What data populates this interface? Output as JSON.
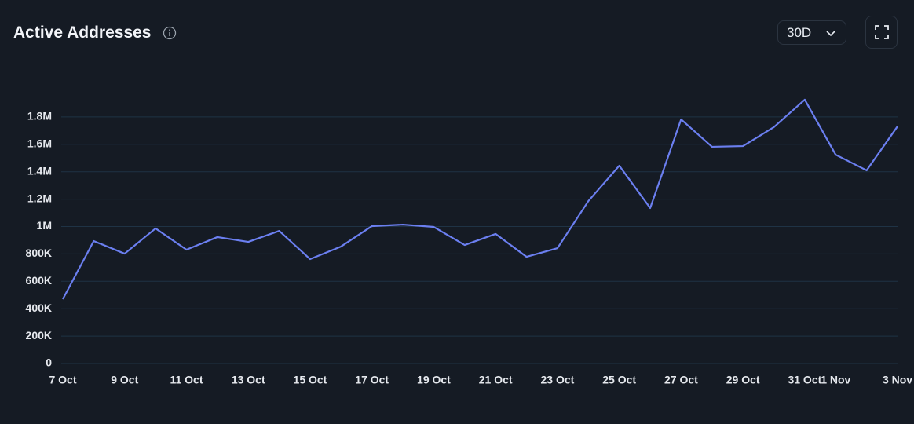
{
  "chart_data": {
    "type": "line",
    "title": "Active Addresses",
    "range_selector": "30D",
    "categories": [
      "7 Oct",
      null,
      "9 Oct",
      null,
      "11 Oct",
      null,
      "13 Oct",
      null,
      "15 Oct",
      null,
      "17 Oct",
      null,
      "19 Oct",
      null,
      "21 Oct",
      null,
      "23 Oct",
      null,
      "25 Oct",
      null,
      "27 Oct",
      null,
      "29 Oct",
      null,
      "31 Oct",
      "1 Nov",
      null,
      "3 Nov"
    ],
    "values": [
      470000,
      894000,
      802000,
      986000,
      831000,
      923000,
      888000,
      968000,
      762000,
      854000,
      1003000,
      1014000,
      997000,
      865000,
      946000,
      779000,
      842000,
      1186000,
      1444000,
      1135000,
      1782000,
      1582000,
      1587000,
      1725000,
      1926000,
      1524000,
      1410000,
      1731000
    ],
    "color": "#6b7ff0",
    "ylim": [
      0,
      2000000
    ],
    "yticks": [
      0,
      {
        "value": 200000,
        "label": "200K"
      },
      {
        "value": 400000,
        "label": "400K"
      },
      {
        "value": 600000,
        "label": "600K"
      },
      {
        "value": 800000,
        "label": "800K"
      },
      {
        "value": 1000000,
        "label": "1M"
      },
      {
        "value": 1200000,
        "label": "1.2M"
      },
      {
        "value": 1400000,
        "label": "1.4M"
      },
      {
        "value": 1600000,
        "label": "1.6M"
      },
      {
        "value": 1800000,
        "label": "1.8M"
      }
    ],
    "grid": true
  }
}
